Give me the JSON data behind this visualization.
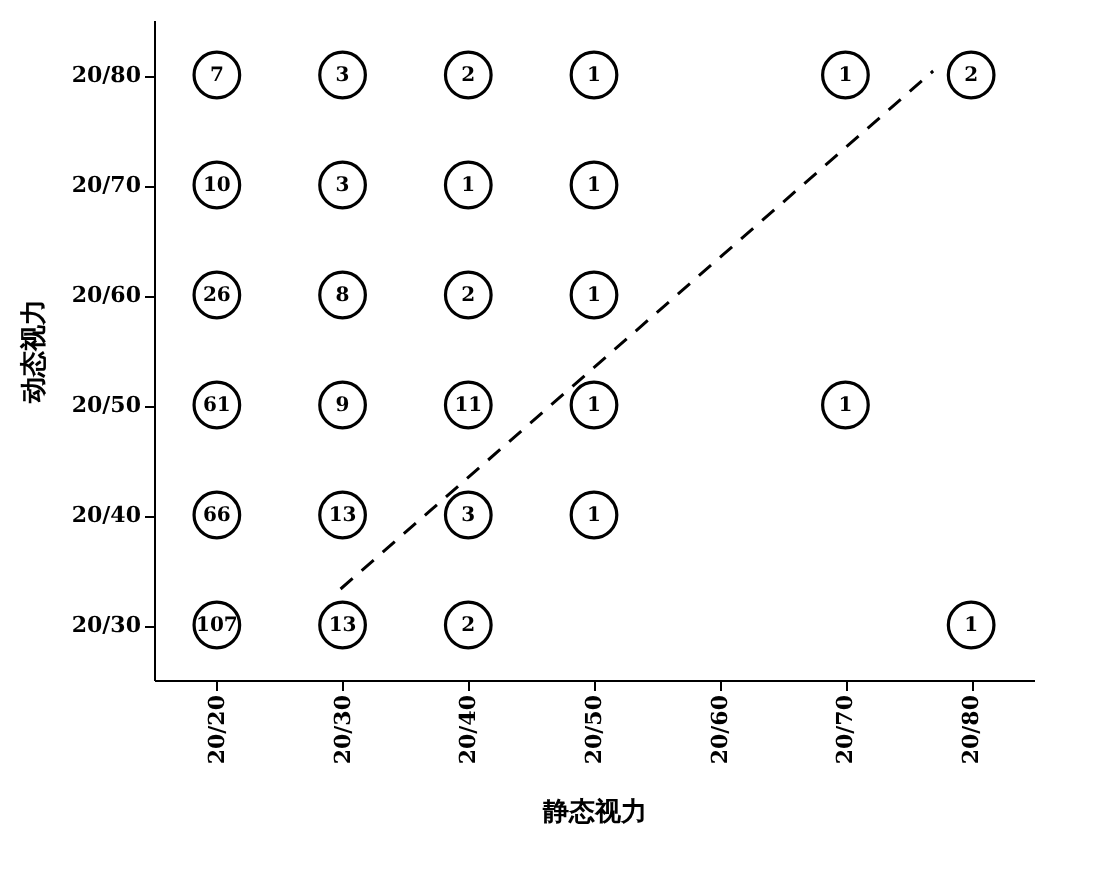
{
  "chart_data": {
    "type": "heatmap",
    "xlabel": "静态视力",
    "ylabel": "动态视力",
    "categories": [
      "20/20",
      "20/30",
      "20/40",
      "20/50",
      "20/60",
      "20/70",
      "20/80"
    ],
    "y_categories": [
      "20/80",
      "20/70",
      "20/60",
      "20/50",
      "20/40",
      "20/30"
    ],
    "cells": [
      [
        7,
        3,
        2,
        1,
        null,
        1,
        2
      ],
      [
        10,
        3,
        1,
        1,
        null,
        null,
        null
      ],
      [
        26,
        8,
        2,
        1,
        null,
        null,
        null
      ],
      [
        61,
        9,
        11,
        1,
        null,
        1,
        null
      ],
      [
        66,
        13,
        3,
        1,
        null,
        null,
        null
      ],
      [
        107,
        13,
        2,
        null,
        null,
        null,
        1
      ]
    ],
    "data_labels": true,
    "grid": false
  }
}
